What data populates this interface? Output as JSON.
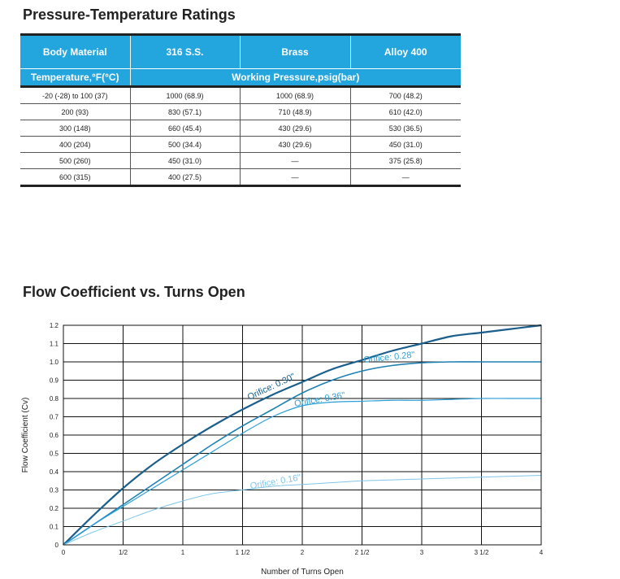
{
  "ratings": {
    "title": "Pressure-Temperature Ratings",
    "header": {
      "body_material": "Body Material",
      "materials": [
        "316 S.S.",
        "Brass",
        "Alloy  400"
      ],
      "temperature": "Temperature,°F(°C)",
      "working_pressure": "Working  Pressure,psig(bar)"
    },
    "rows": [
      [
        "-20 (-28) to 100 (37)",
        "1000 (68.9)",
        "1000 (68.9)",
        "700 (48.2)"
      ],
      [
        "200 (93)",
        "830 (57.1)",
        "710 (48.9)",
        "610 (42.0)"
      ],
      [
        "300 (148)",
        "660 (45.4)",
        "430 (29.6)",
        "530 (36.5)"
      ],
      [
        "400 (204)",
        "500 (34.4)",
        "430 (29.6)",
        "450 (31.0)"
      ],
      [
        "500 (260)",
        "450 (31.0)",
        "—",
        "375 (25.8)"
      ],
      [
        "600 (315)",
        "400 (27.5)",
        "—",
        "—"
      ]
    ]
  },
  "chart_data": {
    "type": "line",
    "title": "Flow Coefficient vs. Turns Open",
    "xlabel": "Number of Turns Open",
    "ylabel": "Flow Coefficient (Cv)",
    "xlim": [
      0,
      4
    ],
    "ylim": [
      0,
      1.2
    ],
    "x_ticks": [
      {
        "value": 0,
        "label": "0"
      },
      {
        "value": 0.5,
        "label": "1/2"
      },
      {
        "value": 1,
        "label": "1"
      },
      {
        "value": 1.5,
        "label": "1 1/2"
      },
      {
        "value": 2,
        "label": "2"
      },
      {
        "value": 2.5,
        "label": "2 1/2"
      },
      {
        "value": 3,
        "label": "3"
      },
      {
        "value": 3.5,
        "label": "3 1/2"
      },
      {
        "value": 4,
        "label": "4"
      }
    ],
    "y_ticks": [
      {
        "value": 0,
        "label": "0"
      },
      {
        "value": 0.1,
        "label": "0.1"
      },
      {
        "value": 0.2,
        "label": "0.2"
      },
      {
        "value": 0.3,
        "label": "0.3"
      },
      {
        "value": 0.4,
        "label": "0.4"
      },
      {
        "value": 0.5,
        "label": "0.5"
      },
      {
        "value": 0.6,
        "label": "0.6"
      },
      {
        "value": 0.7,
        "label": "0.7"
      },
      {
        "value": 0.8,
        "label": "0.8"
      },
      {
        "value": 0.9,
        "label": "0.9"
      },
      {
        "value": 1.0,
        "label": "1.0"
      },
      {
        "value": 1.1,
        "label": "1.1"
      },
      {
        "value": 1.2,
        "label": "1.2"
      }
    ],
    "grid": true,
    "series": [
      {
        "name": "Orifice: 0.30\"",
        "color": "#1a5f8c",
        "width": 2.2,
        "x": [
          0,
          0.25,
          0.5,
          0.75,
          1,
          1.25,
          1.5,
          1.75,
          2,
          2.25,
          2.5,
          2.75,
          3,
          3.25,
          3.5,
          3.75,
          4
        ],
        "y": [
          0,
          0.16,
          0.31,
          0.44,
          0.55,
          0.65,
          0.74,
          0.82,
          0.89,
          0.96,
          1.01,
          1.06,
          1.1,
          1.14,
          1.16,
          1.18,
          1.2
        ]
      },
      {
        "name": "Orifice: 0.28\"",
        "color": "#1d80b3",
        "width": 1.6,
        "x": [
          0,
          0.25,
          0.5,
          0.75,
          1,
          1.25,
          1.5,
          1.75,
          2,
          2.25,
          2.5,
          2.75,
          3,
          3.25,
          3.5,
          3.75,
          4
        ],
        "y": [
          0,
          0.11,
          0.22,
          0.33,
          0.44,
          0.55,
          0.65,
          0.74,
          0.83,
          0.9,
          0.95,
          0.98,
          0.995,
          1.0,
          1.0,
          1.0,
          1.0
        ]
      },
      {
        "name": "Orifice: 0.36\"",
        "color": "#2a9fd6",
        "width": 1.2,
        "x": [
          0,
          0.25,
          0.5,
          0.75,
          1,
          1.25,
          1.5,
          1.75,
          2,
          2.25,
          2.5,
          2.75,
          3,
          3.25,
          3.5,
          3.75,
          4
        ],
        "y": [
          0,
          0.11,
          0.21,
          0.31,
          0.41,
          0.51,
          0.61,
          0.7,
          0.76,
          0.78,
          0.785,
          0.79,
          0.79,
          0.795,
          0.8,
          0.8,
          0.8
        ]
      },
      {
        "name": "Orifice: 0.16\"",
        "color": "#7fc6e8",
        "width": 1.0,
        "x": [
          0,
          0.25,
          0.5,
          0.75,
          1,
          1.25,
          1.5,
          1.75,
          2,
          2.25,
          2.5,
          2.75,
          3,
          3.25,
          3.5,
          3.75,
          4
        ],
        "y": [
          0,
          0.07,
          0.13,
          0.19,
          0.24,
          0.28,
          0.3,
          0.32,
          0.33,
          0.34,
          0.35,
          0.355,
          0.36,
          0.365,
          0.37,
          0.375,
          0.38
        ]
      }
    ],
    "annotations": [
      {
        "text": "Orifice: 0.30\"",
        "x": 1.75,
        "y": 0.85,
        "rotate": -25,
        "color": "#1a5f8c"
      },
      {
        "text": "Orifice: 0.28\"",
        "x": 2.73,
        "y": 1.01,
        "rotate": -6,
        "color": "#2a9fd6"
      },
      {
        "text": "Orifice: 0.36\"",
        "x": 2.15,
        "y": 0.78,
        "rotate": -10,
        "color": "#2a9fd6"
      },
      {
        "text": "Orifice: 0.16\"",
        "x": 1.78,
        "y": 0.33,
        "rotate": -10,
        "color": "#7fc6e8"
      }
    ]
  }
}
